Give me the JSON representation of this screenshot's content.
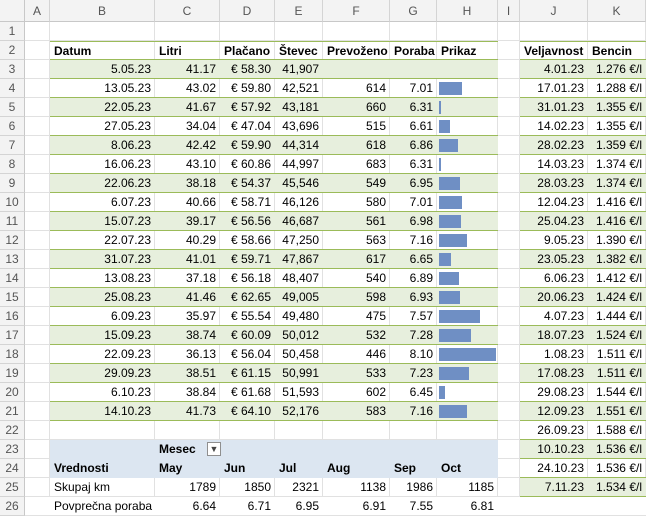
{
  "columns": [
    "A",
    "B",
    "C",
    "D",
    "E",
    "F",
    "G",
    "H",
    "I",
    "J",
    "K"
  ],
  "rows": [
    "1",
    "2",
    "3",
    "4",
    "5",
    "6",
    "7",
    "8",
    "9",
    "10",
    "11",
    "12",
    "13",
    "14",
    "15",
    "16",
    "17",
    "18",
    "19",
    "20",
    "21",
    "22",
    "23",
    "24",
    "25",
    "26"
  ],
  "fuel_table": {
    "headers": [
      "Datum",
      "Litri",
      "Plačano",
      "Števec",
      "Prevoženo",
      "Poraba",
      "Prikaz"
    ],
    "rows": [
      [
        "5.05.23",
        "41.17",
        "€ 58.30",
        "41,907",
        "",
        "",
        ""
      ],
      [
        "13.05.23",
        "43.02",
        "€ 59.80",
        "42,521",
        "614",
        "7.01",
        ""
      ],
      [
        "22.05.23",
        "41.67",
        "€ 57.92",
        "43,181",
        "660",
        "6.31",
        ""
      ],
      [
        "27.05.23",
        "34.04",
        "€ 47.04",
        "43,696",
        "515",
        "6.61",
        ""
      ],
      [
        "8.06.23",
        "42.42",
        "€ 59.90",
        "44,314",
        "618",
        "6.86",
        ""
      ],
      [
        "16.06.23",
        "43.10",
        "€ 60.86",
        "44,997",
        "683",
        "6.31",
        ""
      ],
      [
        "22.06.23",
        "38.18",
        "€ 54.37",
        "45,546",
        "549",
        "6.95",
        ""
      ],
      [
        "6.07.23",
        "40.66",
        "€ 58.71",
        "46,126",
        "580",
        "7.01",
        ""
      ],
      [
        "15.07.23",
        "39.17",
        "€ 56.56",
        "46,687",
        "561",
        "6.98",
        ""
      ],
      [
        "22.07.23",
        "40.29",
        "€ 58.66",
        "47,250",
        "563",
        "7.16",
        ""
      ],
      [
        "31.07.23",
        "41.01",
        "€ 59.71",
        "47,867",
        "617",
        "6.65",
        ""
      ],
      [
        "13.08.23",
        "37.18",
        "€ 56.18",
        "48,407",
        "540",
        "6.89",
        ""
      ],
      [
        "25.08.23",
        "41.46",
        "€ 62.65",
        "49,005",
        "598",
        "6.93",
        ""
      ],
      [
        "6.09.23",
        "35.97",
        "€ 55.54",
        "49,480",
        "475",
        "7.57",
        ""
      ],
      [
        "15.09.23",
        "38.74",
        "€ 60.09",
        "50,012",
        "532",
        "7.28",
        ""
      ],
      [
        "22.09.23",
        "36.13",
        "€ 56.04",
        "50,458",
        "446",
        "8.10",
        ""
      ],
      [
        "29.09.23",
        "38.51",
        "€ 61.15",
        "50,991",
        "533",
        "7.23",
        ""
      ],
      [
        "6.10.23",
        "38.84",
        "€ 61.68",
        "51,593",
        "602",
        "6.45",
        ""
      ],
      [
        "14.10.23",
        "41.73",
        "€ 64.10",
        "52,176",
        "583",
        "7.16",
        ""
      ]
    ],
    "prikaz_bar_values": [
      null,
      7.01,
      6.31,
      6.61,
      6.86,
      6.31,
      6.95,
      7.01,
      6.98,
      7.16,
      6.65,
      6.89,
      6.93,
      7.57,
      7.28,
      8.1,
      7.23,
      6.45,
      7.16
    ],
    "bar_min": 6.31,
    "bar_max": 8.1,
    "bar_color": "#6f8fc4"
  },
  "price_table": {
    "headers": [
      "Veljavnost",
      "Bencin"
    ],
    "rows": [
      [
        "4.01.23",
        "1.276 €/l"
      ],
      [
        "17.01.23",
        "1.288 €/l"
      ],
      [
        "31.01.23",
        "1.355 €/l"
      ],
      [
        "14.02.23",
        "1.355 €/l"
      ],
      [
        "28.02.23",
        "1.359 €/l"
      ],
      [
        "14.03.23",
        "1.374 €/l"
      ],
      [
        "28.03.23",
        "1.374 €/l"
      ],
      [
        "12.04.23",
        "1.416 €/l"
      ],
      [
        "25.04.23",
        "1.416 €/l"
      ],
      [
        "9.05.23",
        "1.390 €/l"
      ],
      [
        "23.05.23",
        "1.382 €/l"
      ],
      [
        "6.06.23",
        "1.412 €/l"
      ],
      [
        "20.06.23",
        "1.424 €/l"
      ],
      [
        "4.07.23",
        "1.444 €/l"
      ],
      [
        "18.07.23",
        "1.524 €/l"
      ],
      [
        "1.08.23",
        "1.511 €/l"
      ],
      [
        "17.08.23",
        "1.511 €/l"
      ],
      [
        "29.08.23",
        "1.544 €/l"
      ],
      [
        "12.09.23",
        "1.551 €/l"
      ],
      [
        "26.09.23",
        "1.588 €/l"
      ],
      [
        "10.10.23",
        "1.536 €/l"
      ],
      [
        "24.10.23",
        "1.536 €/l"
      ],
      [
        "7.11.23",
        "1.534 €/l"
      ]
    ]
  },
  "pivot": {
    "column_field": "Mesec",
    "row_header": "Vrednosti",
    "months": [
      "May",
      "Jun",
      "Jul",
      "Aug",
      "Sep",
      "Oct"
    ],
    "rows": [
      {
        "label": "Skupaj km",
        "values": [
          "1789",
          "1850",
          "2321",
          "1138",
          "1986",
          "1185"
        ]
      },
      {
        "label": "Povprečna poraba",
        "values": [
          "6.64",
          "6.71",
          "6.95",
          "6.91",
          "7.55",
          "6.81"
        ]
      }
    ]
  },
  "colors": {
    "band": "#e7efdd",
    "table_border": "#9bbb59",
    "pivot_header": "#dce6f1"
  }
}
